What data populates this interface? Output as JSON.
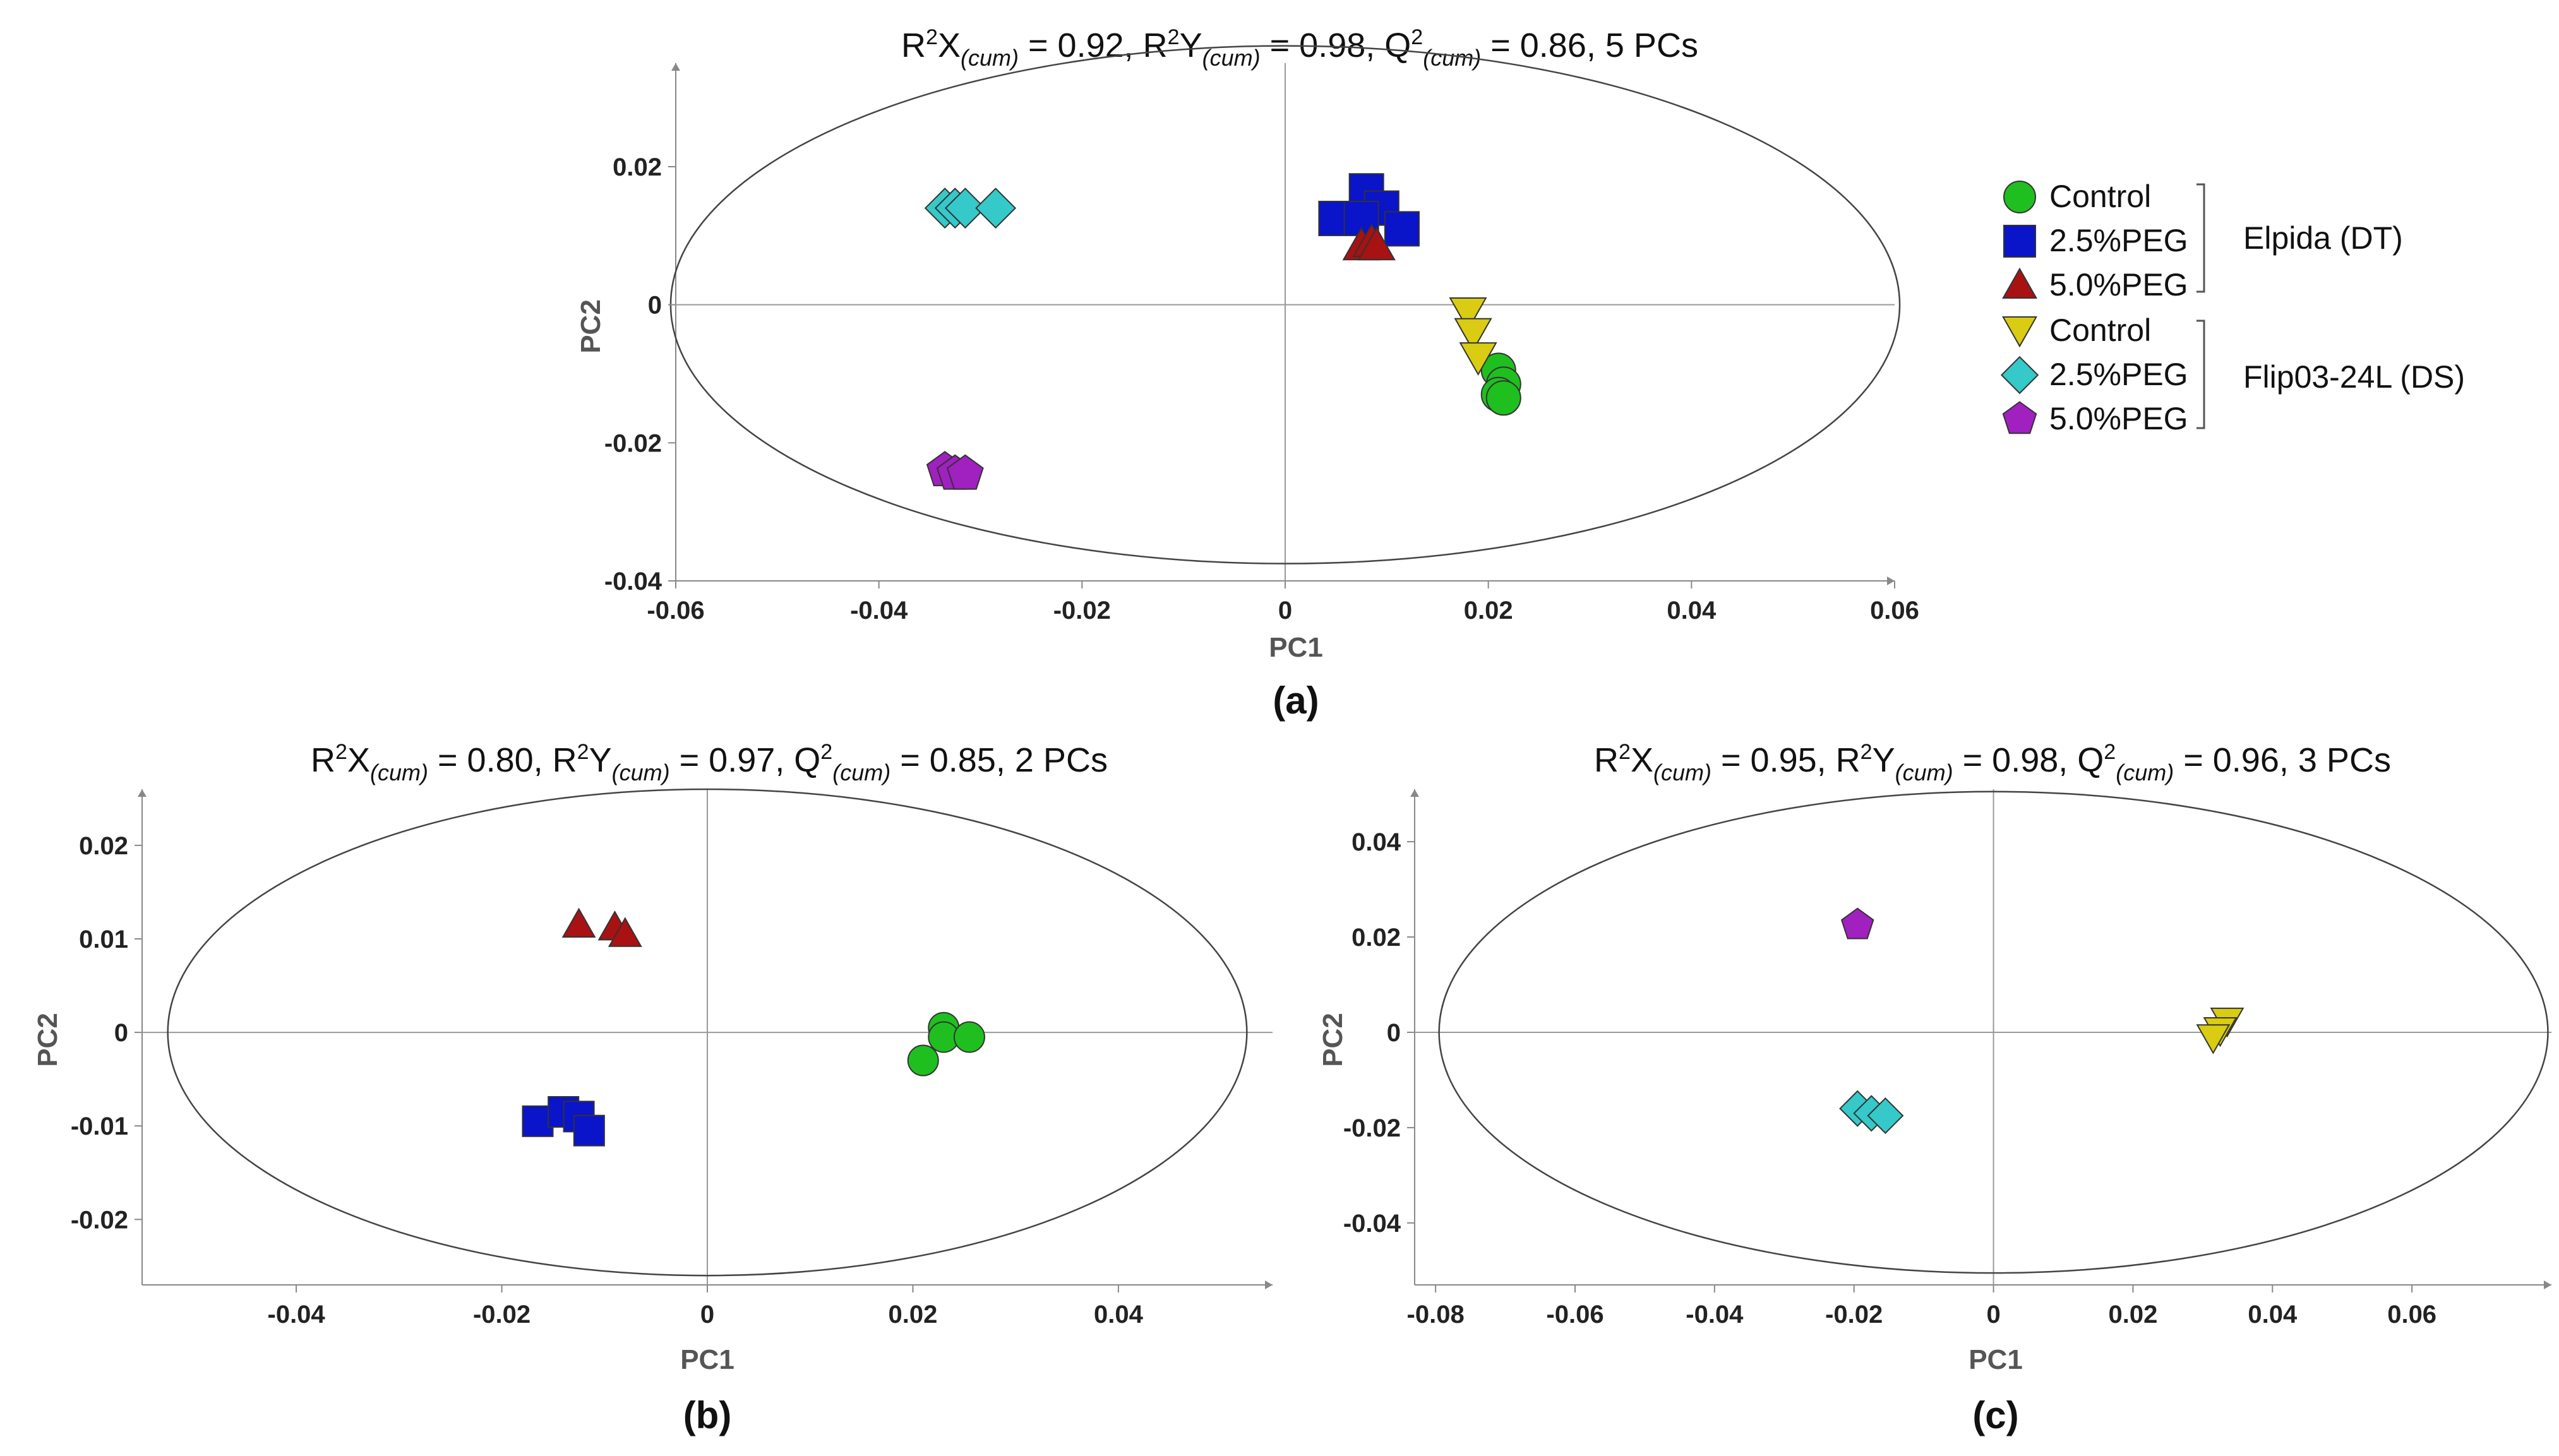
{
  "colors": {
    "control_dt": "#1fbf1f",
    "peg25_dt": "#0a14c8",
    "peg50_dt": "#a81212",
    "control_ds": "#d9cc12",
    "peg25_ds": "#35c9c9",
    "peg50_ds": "#a020c0"
  },
  "legend": {
    "elpida_group": "Elpida (DT)",
    "flip_group": "Flip03-24L (DS)",
    "items": [
      {
        "key": "control_dt",
        "label": "Control",
        "marker": "circle-marker-icon"
      },
      {
        "key": "peg25_dt",
        "label": "2.5%PEG",
        "marker": "square-marker-icon"
      },
      {
        "key": "peg50_dt",
        "label": "5.0%PEG",
        "marker": "triangle-up-marker-icon"
      },
      {
        "key": "control_ds",
        "label": "Control",
        "marker": "triangle-down-marker-icon"
      },
      {
        "key": "peg25_ds",
        "label": "2.5%PEG",
        "marker": "diamond-marker-icon"
      },
      {
        "key": "peg50_ds",
        "label": "5.0%PEG",
        "marker": "pentagon-marker-icon"
      }
    ]
  },
  "chart_data": [
    {
      "id": "a",
      "type": "scatter",
      "panel_label": "(a)",
      "title": {
        "r2x": "0.92",
        "r2y": "0.98",
        "q2": "0.86",
        "pcs": "5 PCs"
      },
      "xlabel": "PC1",
      "ylabel": "PC2",
      "xlim": [
        -0.06,
        0.06
      ],
      "ylim": [
        -0.04,
        0.035
      ],
      "xticks": [
        -0.06,
        -0.04,
        -0.02,
        0,
        0.02,
        0.04,
        0.06
      ],
      "xtick_labels": [
        "-0.06",
        "-0.04",
        "-0.02",
        "0",
        "0.02",
        "0.04",
        "0.06"
      ],
      "yticks": [
        -0.04,
        -0.02,
        0,
        0.02
      ],
      "ytick_labels": [
        "-0.04",
        "-0.02",
        "0",
        "0.02"
      ],
      "ellipse": {
        "rx": 0.0605,
        "ry": 0.0375
      },
      "series": [
        {
          "key": "control_dt",
          "name": "Control (Elpida)",
          "marker": "circle",
          "points": [
            [
              0.021,
              -0.0095
            ],
            [
              0.0215,
              -0.0115
            ],
            [
              0.021,
              -0.013
            ],
            [
              0.0215,
              -0.0135
            ]
          ]
        },
        {
          "key": "peg25_dt",
          "name": "2.5%PEG (Elpida)",
          "marker": "square",
          "points": [
            [
              0.005,
              0.0125
            ],
            [
              0.008,
              0.0165
            ],
            [
              0.0095,
              0.014
            ],
            [
              0.0115,
              0.011
            ],
            [
              0.0075,
              0.0125
            ]
          ]
        },
        {
          "key": "peg50_dt",
          "name": "5.0%PEG (Elpida)",
          "marker": "triangle-up",
          "points": [
            [
              0.0075,
              0.0085
            ],
            [
              0.0085,
              0.009
            ],
            [
              0.009,
              0.0085
            ]
          ]
        },
        {
          "key": "control_ds",
          "name": "Control (Flip03-24L)",
          "marker": "triangle-down",
          "points": [
            [
              0.018,
              -0.001
            ],
            [
              0.0185,
              -0.004
            ],
            [
              0.019,
              -0.0075
            ]
          ]
        },
        {
          "key": "peg25_ds",
          "name": "2.5%PEG (Flip03-24L)",
          "marker": "diamond",
          "points": [
            [
              -0.0335,
              0.014
            ],
            [
              -0.0325,
              0.014
            ],
            [
              -0.0315,
              0.014
            ],
            [
              -0.0285,
              0.014
            ]
          ]
        },
        {
          "key": "peg50_ds",
          "name": "5.0%PEG (Flip03-24L)",
          "marker": "pentagon",
          "points": [
            [
              -0.0335,
              -0.024
            ],
            [
              -0.0325,
              -0.0245
            ],
            [
              -0.0315,
              -0.0245
            ]
          ]
        }
      ]
    },
    {
      "id": "b",
      "type": "scatter",
      "panel_label": "(b)",
      "title": {
        "r2x": "0.80",
        "r2y": "0.97",
        "q2": "0.85",
        "pcs": "2 PCs"
      },
      "xlabel": "PC1",
      "ylabel": "PC2",
      "xlim": [
        -0.055,
        0.055
      ],
      "ylim": [
        -0.027,
        0.026
      ],
      "xticks": [
        -0.04,
        -0.02,
        0,
        0.02,
        0.04
      ],
      "xtick_labels": [
        "-0.04",
        "-0.02",
        "0",
        "0.02",
        "0.04"
      ],
      "yticks": [
        -0.02,
        -0.01,
        0,
        0.01,
        0.02
      ],
      "ytick_labels": [
        "-0.02",
        "-0.01",
        "0",
        "0.01",
        "0.02"
      ],
      "ellipse": {
        "rx": 0.0525,
        "ry": 0.026
      },
      "series": [
        {
          "key": "control_dt",
          "name": "Control",
          "marker": "circle",
          "points": [
            [
              0.021,
              -0.003
            ],
            [
              0.023,
              0.0005
            ],
            [
              0.023,
              -0.0005
            ],
            [
              0.0255,
              -0.0005
            ]
          ]
        },
        {
          "key": "peg25_dt",
          "name": "2.5%PEG",
          "marker": "square",
          "points": [
            [
              -0.0165,
              -0.0095
            ],
            [
              -0.014,
              -0.0085
            ],
            [
              -0.0125,
              -0.009
            ],
            [
              -0.0115,
              -0.0105
            ]
          ]
        },
        {
          "key": "peg50_dt",
          "name": "5.0%PEG",
          "marker": "triangle-up",
          "points": [
            [
              -0.0125,
              0.0115
            ],
            [
              -0.009,
              0.0112
            ],
            [
              -0.008,
              0.0105
            ]
          ]
        }
      ]
    },
    {
      "id": "c",
      "type": "scatter",
      "panel_label": "(c)",
      "title": {
        "r2x": "0.95",
        "r2y": "0.98",
        "q2": "0.96",
        "pcs": "3 PCs"
      },
      "xlabel": "PC1",
      "ylabel": "PC2",
      "xlim": [
        -0.083,
        0.08
      ],
      "ylim": [
        -0.053,
        0.051
      ],
      "xticks": [
        -0.08,
        -0.06,
        -0.04,
        -0.02,
        0,
        0.02,
        0.04,
        0.06
      ],
      "xtick_labels": [
        "-0.08",
        "-0.06",
        "-0.04",
        "-0.02",
        "0",
        "0.02",
        "0.04",
        "0.06"
      ],
      "yticks": [
        -0.04,
        -0.02,
        0,
        0.02,
        0.04
      ],
      "ytick_labels": [
        "-0.04",
        "-0.02",
        "0",
        "0.02",
        "0.04"
      ],
      "ellipse": {
        "rx": 0.0795,
        "ry": 0.0505
      },
      "series": [
        {
          "key": "control_ds",
          "name": "Control",
          "marker": "triangle-down",
          "points": [
            [
              0.0335,
              0.0025
            ],
            [
              0.0325,
              0.0005
            ],
            [
              0.0315,
              -0.001
            ]
          ]
        },
        {
          "key": "peg25_ds",
          "name": "2.5%PEG",
          "marker": "diamond",
          "points": [
            [
              -0.0195,
              -0.016
            ],
            [
              -0.0175,
              -0.017
            ],
            [
              -0.0155,
              -0.0175
            ]
          ]
        },
        {
          "key": "peg50_ds",
          "name": "5.0%PEG",
          "marker": "pentagon",
          "points": [
            [
              -0.0195,
              0.0225
            ]
          ]
        }
      ]
    }
  ]
}
